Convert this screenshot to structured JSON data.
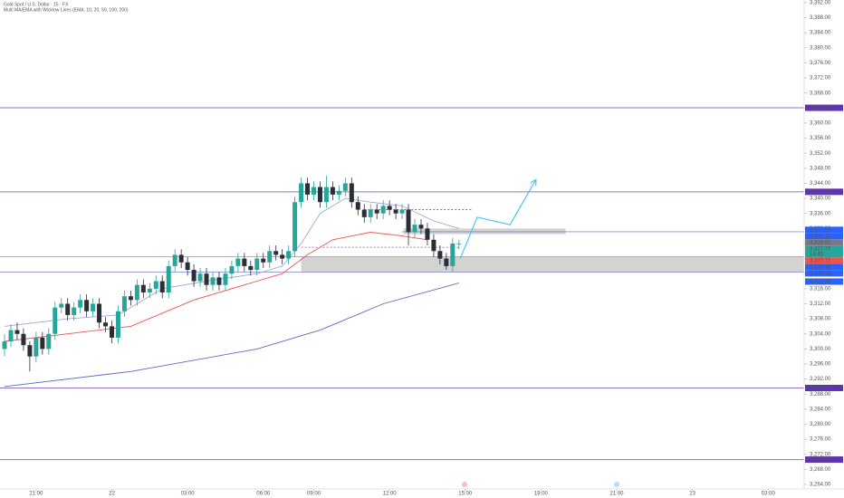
{
  "chart_data": {
    "type": "candlestick",
    "title": "Gold Spot / U.S. Dollar · 15 · FX",
    "subtitle": "Multi MA/EMA with Wicklow Lines (EMA, 10, 20, 50, 100, 200)",
    "up_color": "#26a69a",
    "down_color": "#2a2e39",
    "x": [
      0,
      1,
      2,
      3,
      4,
      5,
      6,
      7,
      8,
      9,
      10,
      11,
      12,
      13,
      14,
      15,
      16,
      17,
      18,
      19,
      20,
      21,
      22,
      23,
      24,
      25,
      26,
      27,
      28,
      29,
      30,
      31,
      32,
      33,
      34,
      35,
      36,
      37,
      38,
      39,
      40,
      41,
      42,
      43,
      44,
      45,
      46,
      47,
      48,
      49,
      50,
      51,
      52,
      53,
      54,
      55,
      56,
      57,
      58,
      59,
      60,
      61,
      62,
      63,
      64,
      65,
      66,
      67,
      68,
      69,
      70,
      71,
      72
    ],
    "open": [
      3300,
      3302,
      3305,
      3304,
      3301,
      3298,
      3303,
      3300,
      3304,
      3311,
      3312,
      3309,
      3311,
      3313,
      3310,
      3312,
      3307,
      3306,
      3303,
      3310,
      3314,
      3313,
      3317,
      3315,
      3316,
      3318,
      3315,
      3322,
      3325,
      3323,
      3321,
      3318,
      3320,
      3317,
      3319,
      3317,
      3320,
      3322,
      3324,
      3322,
      3321,
      3324,
      3323,
      3326,
      3325,
      3324,
      3326,
      3339,
      3344,
      3341,
      3343,
      3339,
      3343,
      3341,
      3342,
      3344,
      3339,
      3337,
      3335,
      3337,
      3336,
      3338,
      3337,
      3336,
      3337,
      3331,
      3333,
      3332,
      3329,
      3326,
      3324,
      3322,
      3328
    ],
    "high": [
      3304,
      3306.5,
      3307,
      3305.5,
      3302,
      3304.5,
      3304.5,
      3305.5,
      3312.5,
      3313.5,
      3313.5,
      3312.5,
      3314.5,
      3314.5,
      3313.5,
      3313.5,
      3308.5,
      3307.5,
      3311.5,
      3315.5,
      3315.5,
      3318.5,
      3318.5,
      3317.5,
      3319.5,
      3319.5,
      3323.5,
      3326.5,
      3326.5,
      3324.5,
      3322.5,
      3321.5,
      3321.5,
      3320.5,
      3320.5,
      3321.5,
      3323.5,
      3325.5,
      3325.5,
      3323.5,
      3325.5,
      3325.5,
      3327.5,
      3327.5,
      3326.5,
      3327.5,
      3340.5,
      3345.5,
      3345.5,
      3344.5,
      3344.5,
      3346,
      3344.5,
      3343.5,
      3345.5,
      3345.5,
      3340.5,
      3338.5,
      3338.5,
      3338.5,
      3339.5,
      3339.5,
      3338.5,
      3338.5,
      3338.5,
      3334.5,
      3334.5,
      3333.5,
      3330.5,
      3327.5,
      3325.5,
      3329.5,
      3329
    ],
    "low": [
      3298,
      3300.5,
      3302.5,
      3299.5,
      3294,
      3296.5,
      3298.5,
      3298.5,
      3302.5,
      3309.5,
      3307.5,
      3307.5,
      3309.5,
      3308.5,
      3308.5,
      3305.5,
      3304.5,
      3301.5,
      3301.5,
      3308.5,
      3311.5,
      3311.5,
      3313.5,
      3313.5,
      3314.5,
      3313.5,
      3313.5,
      3320.5,
      3321.5,
      3319.5,
      3316.5,
      3316.5,
      3315.5,
      3315.5,
      3315.5,
      3315.5,
      3318.5,
      3320.5,
      3320.5,
      3319.5,
      3319.5,
      3321.5,
      3321.5,
      3323.5,
      3322.5,
      3322.5,
      3324.5,
      3337.5,
      3339.5,
      3339.5,
      3337.5,
      3337.5,
      3339.5,
      3339.5,
      3340.5,
      3337.5,
      3335.5,
      3333.5,
      3333.5,
      3334.5,
      3334.5,
      3335.5,
      3334.5,
      3334.5,
      3327.5,
      3329.5,
      3330.5,
      3327.5,
      3324.5,
      3322.5,
      3321,
      3320.5,
      3326.5
    ],
    "close": [
      3302,
      3305,
      3304,
      3301,
      3298,
      3303,
      3300,
      3304,
      3311,
      3312,
      3309,
      3311,
      3313,
      3310,
      3312,
      3307,
      3306,
      3303,
      3310,
      3314,
      3313,
      3317,
      3315,
      3316,
      3318,
      3315,
      3322,
      3325,
      3323,
      3321,
      3318,
      3320,
      3317,
      3319,
      3317,
      3320,
      3322,
      3324,
      3322,
      3321,
      3324,
      3323,
      3326,
      3325,
      3324,
      3326,
      3339,
      3344,
      3341,
      3343,
      3339,
      3343,
      3341,
      3342,
      3344,
      3339,
      3337,
      3335,
      3337,
      3336,
      3338,
      3337,
      3336,
      3337,
      3331,
      3333,
      3332,
      3329,
      3326,
      3324,
      3322,
      3328,
      3328
    ],
    "lines": [
      {
        "color": "#9fa8da",
        "x": [
          0,
          10,
          18,
          25,
          32,
          40,
          44,
          47,
          50,
          54,
          58,
          63,
          68,
          72
        ],
        "values": [
          3306,
          3308,
          3309,
          3316,
          3318,
          3320,
          3322,
          3328,
          3336,
          3340,
          3339,
          3338,
          3334,
          3332
        ]
      },
      {
        "color": "#ef5350",
        "x": [
          0,
          10,
          20,
          30,
          40,
          44,
          48,
          52,
          58,
          63,
          67
        ],
        "values": [
          3302,
          3304,
          3306,
          3313,
          3318,
          3320,
          3325,
          3329,
          3331,
          3330,
          3329
        ]
      },
      {
        "color": "#5c6bc0",
        "x": [
          0,
          20,
          40,
          50,
          60,
          72
        ],
        "values": [
          3290,
          3294,
          3300,
          3305,
          3312,
          3317.5
        ]
      }
    ],
    "levels": [
      {
        "value": 3364.06,
        "label": "3,364.06",
        "color": "#5e35b1"
      },
      {
        "value": 3341.74,
        "label": "3,341.74",
        "color": "#5e35b1"
      },
      {
        "value": 3289.62,
        "label": "3,289.62",
        "color": "#5e35b1"
      },
      {
        "value": 3270.6,
        "label": "3,270.60",
        "color": "#5e35b1"
      }
    ],
    "hlines": [
      {
        "value": 3331.13,
        "from": 63,
        "color": "#5c6bc0"
      },
      {
        "value": 3324.48,
        "from": -0.72,
        "color": "#5c6bc0"
      },
      {
        "value": 3320.43,
        "from": -0.72,
        "color": "#5c6bc0"
      }
    ],
    "price_labels": [
      {
        "value": 3331.64,
        "label": "3,331.64",
        "color": "#2962ff"
      },
      {
        "value": 3331.13,
        "label": "3,331.13",
        "color": "#2962ff"
      },
      {
        "value": 3329.82,
        "label": "3,329.82",
        "color": "#787b86"
      },
      {
        "value": 3327.77,
        "label": "3,327.77",
        "color": "#26a69a",
        "countdown": "14:45"
      },
      {
        "value": 3327.72,
        "label": "3,327.72",
        "color": "#ef5350"
      },
      {
        "value": 3324.48,
        "label": "3,324.48",
        "color": "#2962ff"
      },
      {
        "value": 3320.43,
        "label": "3,320.43",
        "color": "#2962ff"
      },
      {
        "value": 3317.89,
        "label": "3,317.89",
        "color": "#2962ff"
      }
    ],
    "zones": [
      {
        "x": [
          47,
          126.7
        ],
        "y": [
          3320.43,
          3324.48
        ],
        "color": "#9e9e9e"
      },
      {
        "x": [
          63.2,
          88.9
        ],
        "y": [
          3330.5,
          3332
        ],
        "color": "#9e9e9e"
      }
    ],
    "dashed": [
      {
        "value": 3337,
        "x": [
          57,
          74
        ],
        "color": "#7e57c2"
      },
      {
        "value": 3327,
        "x": [
          47,
          72
        ],
        "color": "#7e57c2"
      }
    ],
    "projection": {
      "color": "#4fc3f7",
      "x": [
        72.2,
        74.9,
        80.1,
        84.2
      ],
      "values": [
        3324,
        3335,
        3333,
        3345
      ]
    },
    "xlim": [
      -0.72,
      126.7
    ],
    "ylim": [
      3262.8,
      3392.7
    ],
    "xticks": [
      {
        "value": 5,
        "label": "21:00"
      },
      {
        "value": 17,
        "label": "22"
      },
      {
        "value": 29,
        "label": "03:00"
      },
      {
        "value": 41,
        "label": "06:00"
      },
      {
        "value": 49,
        "label": "09:00"
      },
      {
        "value": 61,
        "label": "12:00"
      },
      {
        "value": 73,
        "label": "15:00"
      },
      {
        "value": 85,
        "label": "18:00"
      },
      {
        "value": 97,
        "label": "21:00"
      },
      {
        "value": 109,
        "label": "23"
      },
      {
        "value": 121,
        "label": "03:00"
      }
    ],
    "yticks": [
      {
        "value": 3264,
        "label": "3,264.00"
      },
      {
        "value": 3268,
        "label": "3,268.00"
      },
      {
        "value": 3272,
        "label": "3,272.00"
      },
      {
        "value": 3276,
        "label": "3,276.00"
      },
      {
        "value": 3280,
        "label": "3,280.00"
      },
      {
        "value": 3284,
        "label": "3,284.00"
      },
      {
        "value": 3288,
        "label": "3,288.00"
      },
      {
        "value": 3292,
        "label": "3,292.00"
      },
      {
        "value": 3296,
        "label": "3,296.00"
      },
      {
        "value": 3300,
        "label": "3,300.00"
      },
      {
        "value": 3304,
        "label": "3,304.00"
      },
      {
        "value": 3308,
        "label": "3,308.00"
      },
      {
        "value": 3312,
        "label": "3,312.00"
      },
      {
        "value": 3316,
        "label": "3,316.00"
      },
      {
        "value": 3320,
        "label": "3,320.00"
      },
      {
        "value": 3324,
        "label": "3,324.00"
      },
      {
        "value": 3328,
        "label": "3,328.00"
      },
      {
        "value": 3332,
        "label": "3,332.00"
      },
      {
        "value": 3336,
        "label": "3,336.00"
      },
      {
        "value": 3340,
        "label": "3,340.00"
      },
      {
        "value": 3344,
        "label": "3,344.00"
      },
      {
        "value": 3348,
        "label": "3,348.00"
      },
      {
        "value": 3352,
        "label": "3,352.00"
      },
      {
        "value": 3356,
        "label": "3,356.00"
      },
      {
        "value": 3360,
        "label": "3,360.00"
      },
      {
        "value": 3364,
        "label": "3,364.00"
      },
      {
        "value": 3368,
        "label": "3,368.00"
      },
      {
        "value": 3372,
        "label": "3,372.00"
      },
      {
        "value": 3376,
        "label": "3,376.00"
      },
      {
        "value": 3380,
        "label": "3,380.00"
      },
      {
        "value": 3384,
        "label": "3,384.00"
      },
      {
        "value": 3388,
        "label": "3,388.00"
      },
      {
        "value": 3392,
        "label": "3,392.00"
      }
    ]
  }
}
